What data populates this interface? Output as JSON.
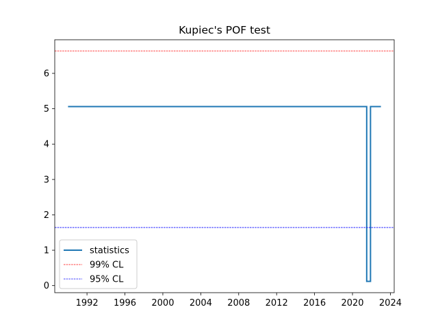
{
  "chart_data": {
    "type": "line",
    "title": "Kupiec's POF test",
    "xlabel": "",
    "ylabel": "",
    "xlim": [
      1988.6,
      2024.4
    ],
    "ylim": [
      -0.2,
      6.95
    ],
    "x_ticks": [
      1992,
      1996,
      2000,
      2004,
      2008,
      2012,
      2016,
      2020,
      2024
    ],
    "x_tick_labels": [
      "1992",
      "1996",
      "2000",
      "2004",
      "2008",
      "2012",
      "2016",
      "2020",
      "2024"
    ],
    "y_ticks": [
      0,
      1,
      2,
      3,
      4,
      5,
      6
    ],
    "y_tick_labels": [
      "0",
      "1",
      "2",
      "3",
      "4",
      "5",
      "6"
    ],
    "grid": false,
    "legend_position": "lower-left",
    "series": [
      {
        "name": "statistics",
        "style": "steps",
        "color": "#1f77b4",
        "x": [
          1990.0,
          2021.5,
          2021.5,
          2021.9,
          2021.9,
          2023.0
        ],
        "y": [
          5.06,
          5.06,
          0.12,
          0.12,
          5.06,
          5.06
        ]
      },
      {
        "name": "99% CL",
        "style": "hline-dashed",
        "color": "#ff0000",
        "y": 6.635
      },
      {
        "name": "95% CL",
        "style": "hline-dashed",
        "color": "#0000ff",
        "y": 1.642
      }
    ]
  }
}
